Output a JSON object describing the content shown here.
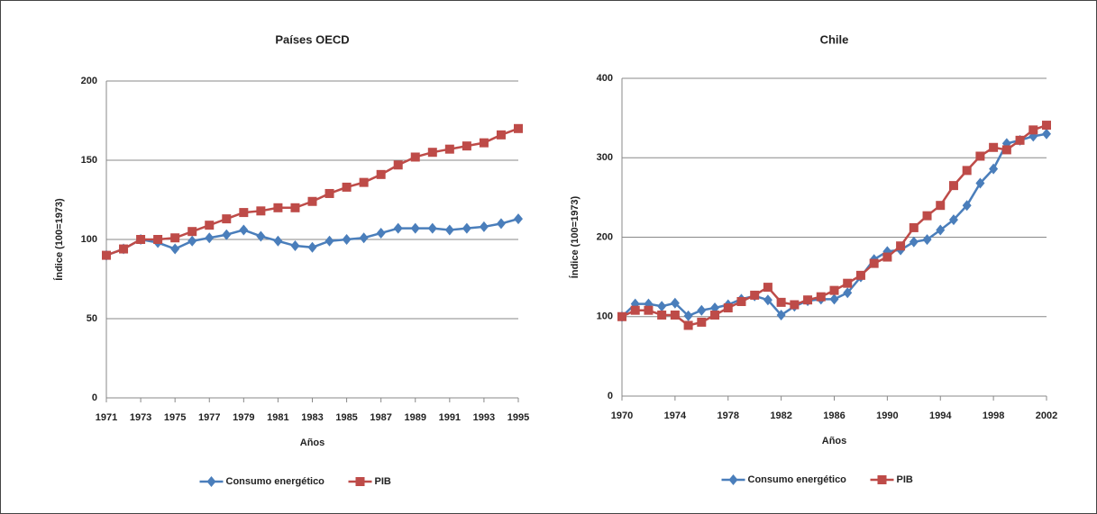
{
  "chart_data": [
    {
      "type": "line",
      "title": "Países OECD",
      "x_label": "Años",
      "y_label": "Índice (100=1973)",
      "x": [
        1971,
        1972,
        1973,
        1974,
        1975,
        1976,
        1977,
        1978,
        1979,
        1980,
        1981,
        1982,
        1983,
        1984,
        1985,
        1986,
        1987,
        1988,
        1989,
        1990,
        1991,
        1992,
        1993,
        1994,
        1995
      ],
      "series": [
        {
          "name": "Consumo energético",
          "color": "#4a7ebb",
          "marker": "diamond",
          "values": [
            90,
            94,
            100,
            98,
            94,
            99,
            101,
            103,
            106,
            102,
            99,
            96,
            95,
            99,
            100,
            101,
            104,
            107,
            107,
            107,
            106,
            107,
            108,
            110,
            113
          ]
        },
        {
          "name": "PIB",
          "color": "#be4b48",
          "marker": "square",
          "values": [
            90,
            94,
            100,
            100,
            101,
            105,
            109,
            113,
            117,
            118,
            120,
            120,
            124,
            129,
            133,
            136,
            141,
            147,
            152,
            155,
            157,
            159,
            161,
            166,
            170
          ]
        }
      ],
      "xlim": [
        1971,
        1995
      ],
      "xticks": [
        1971,
        1973,
        1975,
        1977,
        1979,
        1981,
        1983,
        1985,
        1987,
        1989,
        1991,
        1993,
        1995
      ],
      "ylim": [
        0,
        200
      ],
      "yticks": [
        0,
        50,
        100,
        150,
        200
      ],
      "grid": true,
      "legend": "bottom"
    },
    {
      "type": "line",
      "title": "Chile",
      "x_label": "Años",
      "y_label": "Índice (100=1973)",
      "x": [
        1970,
        1971,
        1972,
        1973,
        1974,
        1975,
        1976,
        1977,
        1978,
        1979,
        1980,
        1981,
        1982,
        1983,
        1984,
        1985,
        1986,
        1987,
        1988,
        1989,
        1990,
        1991,
        1992,
        1993,
        1994,
        1995,
        1996,
        1997,
        1998,
        1999,
        2000,
        2001,
        2002
      ],
      "series": [
        {
          "name": "Consumo energético",
          "color": "#4a7ebb",
          "marker": "diamond",
          "values": [
            100,
            116,
            116,
            113,
            117,
            101,
            108,
            111,
            115,
            122,
            126,
            121,
            102,
            113,
            120,
            122,
            122,
            130,
            150,
            172,
            182,
            184,
            194,
            197,
            209,
            222,
            240,
            268,
            286,
            318,
            322,
            327,
            330
          ]
        },
        {
          "name": "PIB",
          "color": "#be4b48",
          "marker": "square",
          "values": [
            100,
            108,
            108,
            102,
            102,
            89,
            93,
            102,
            111,
            119,
            127,
            137,
            118,
            115,
            121,
            125,
            133,
            142,
            152,
            167,
            175,
            189,
            212,
            227,
            240,
            265,
            284,
            302,
            313,
            310,
            322,
            335,
            341
          ]
        }
      ],
      "xlim": [
        1970,
        2002
      ],
      "xticks": [
        1970,
        1974,
        1978,
        1982,
        1986,
        1990,
        1994,
        1998,
        2002
      ],
      "ylim": [
        0,
        400
      ],
      "yticks": [
        0,
        100,
        200,
        300,
        400
      ],
      "grid": true,
      "legend": "bottom"
    }
  ]
}
